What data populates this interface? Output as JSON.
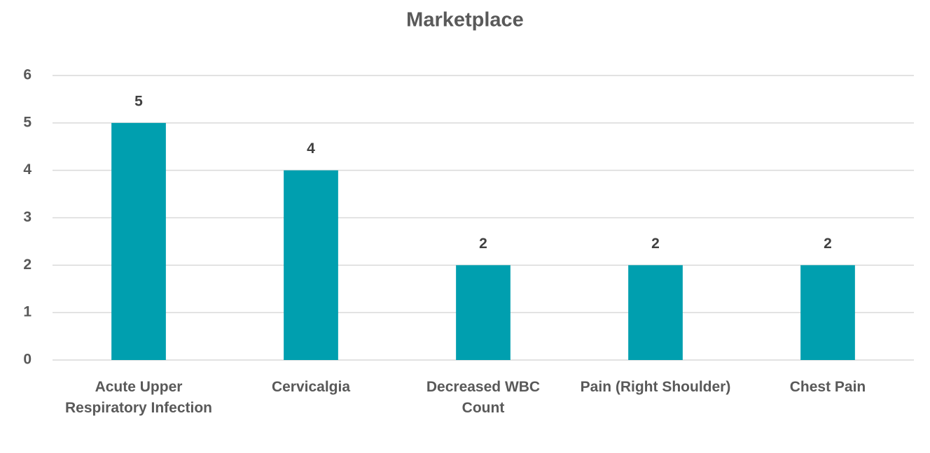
{
  "chart_data": {
    "type": "bar",
    "title": "Marketplace",
    "categories": [
      "Acute Upper Respiratory Infection",
      "Cervicalgia",
      "Decreased WBC Count",
      "Pain (Right Shoulder)",
      "Chest Pain"
    ],
    "values": [
      5,
      4,
      2,
      2,
      2
    ],
    "color": "#009faf",
    "ylim": [
      0,
      6
    ],
    "yticks": [
      0,
      1,
      2,
      3,
      4,
      5,
      6
    ],
    "grid": true,
    "data_labels": true
  }
}
